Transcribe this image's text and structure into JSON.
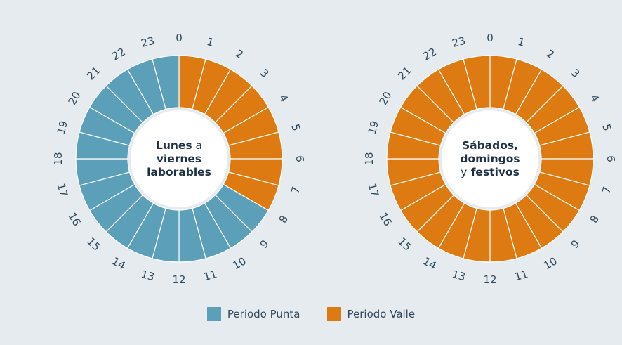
{
  "colors": {
    "punta": "#5b9fb9",
    "valle": "#de7a12",
    "divider": "#ffffff",
    "text": "#2f4a5c"
  },
  "chart_data": [
    {
      "type": "pie",
      "subtype": "24-hour ring",
      "title": [
        {
          "text": "Lunes",
          "weight": "bold"
        },
        {
          "text": " a",
          "weight": "normal"
        },
        {
          "text": "viernes",
          "weight": "bold"
        },
        {
          "text": "laborables",
          "weight": "bold"
        }
      ],
      "title_lines": [
        [
          "Lunes",
          " a"
        ],
        [
          "viernes"
        ],
        [
          "laborables"
        ]
      ],
      "hours": [
        "0",
        "1",
        "2",
        "3",
        "4",
        "5",
        "6",
        "7",
        "8",
        "9",
        "10",
        "11",
        "12",
        "13",
        "14",
        "15",
        "16",
        "17",
        "18",
        "19",
        "20",
        "21",
        "22",
        "23"
      ],
      "period_by_hour": [
        "valle",
        "valle",
        "valle",
        "valle",
        "valle",
        "valle",
        "valle",
        "valle",
        "punta",
        "punta",
        "punta",
        "punta",
        "punta",
        "punta",
        "punta",
        "punta",
        "punta",
        "punta",
        "punta",
        "punta",
        "punta",
        "punta",
        "punta",
        "punta"
      ]
    },
    {
      "type": "pie",
      "subtype": "24-hour ring",
      "title_lines": [
        [
          "Sábados,"
        ],
        [
          "domingos"
        ],
        [
          "y",
          " festivos"
        ]
      ],
      "hours": [
        "0",
        "1",
        "2",
        "3",
        "4",
        "5",
        "6",
        "7",
        "8",
        "9",
        "10",
        "11",
        "12",
        "13",
        "14",
        "15",
        "16",
        "17",
        "18",
        "19",
        "20",
        "21",
        "22",
        "23"
      ],
      "period_by_hour": [
        "valle",
        "valle",
        "valle",
        "valle",
        "valle",
        "valle",
        "valle",
        "valle",
        "valle",
        "valle",
        "valle",
        "valle",
        "valle",
        "valle",
        "valle",
        "valle",
        "valle",
        "valle",
        "valle",
        "valle",
        "valle",
        "valle",
        "valle",
        "valle"
      ]
    }
  ],
  "legend": {
    "punta_label": "Periodo Punta",
    "valle_label": "Periodo Valle"
  }
}
